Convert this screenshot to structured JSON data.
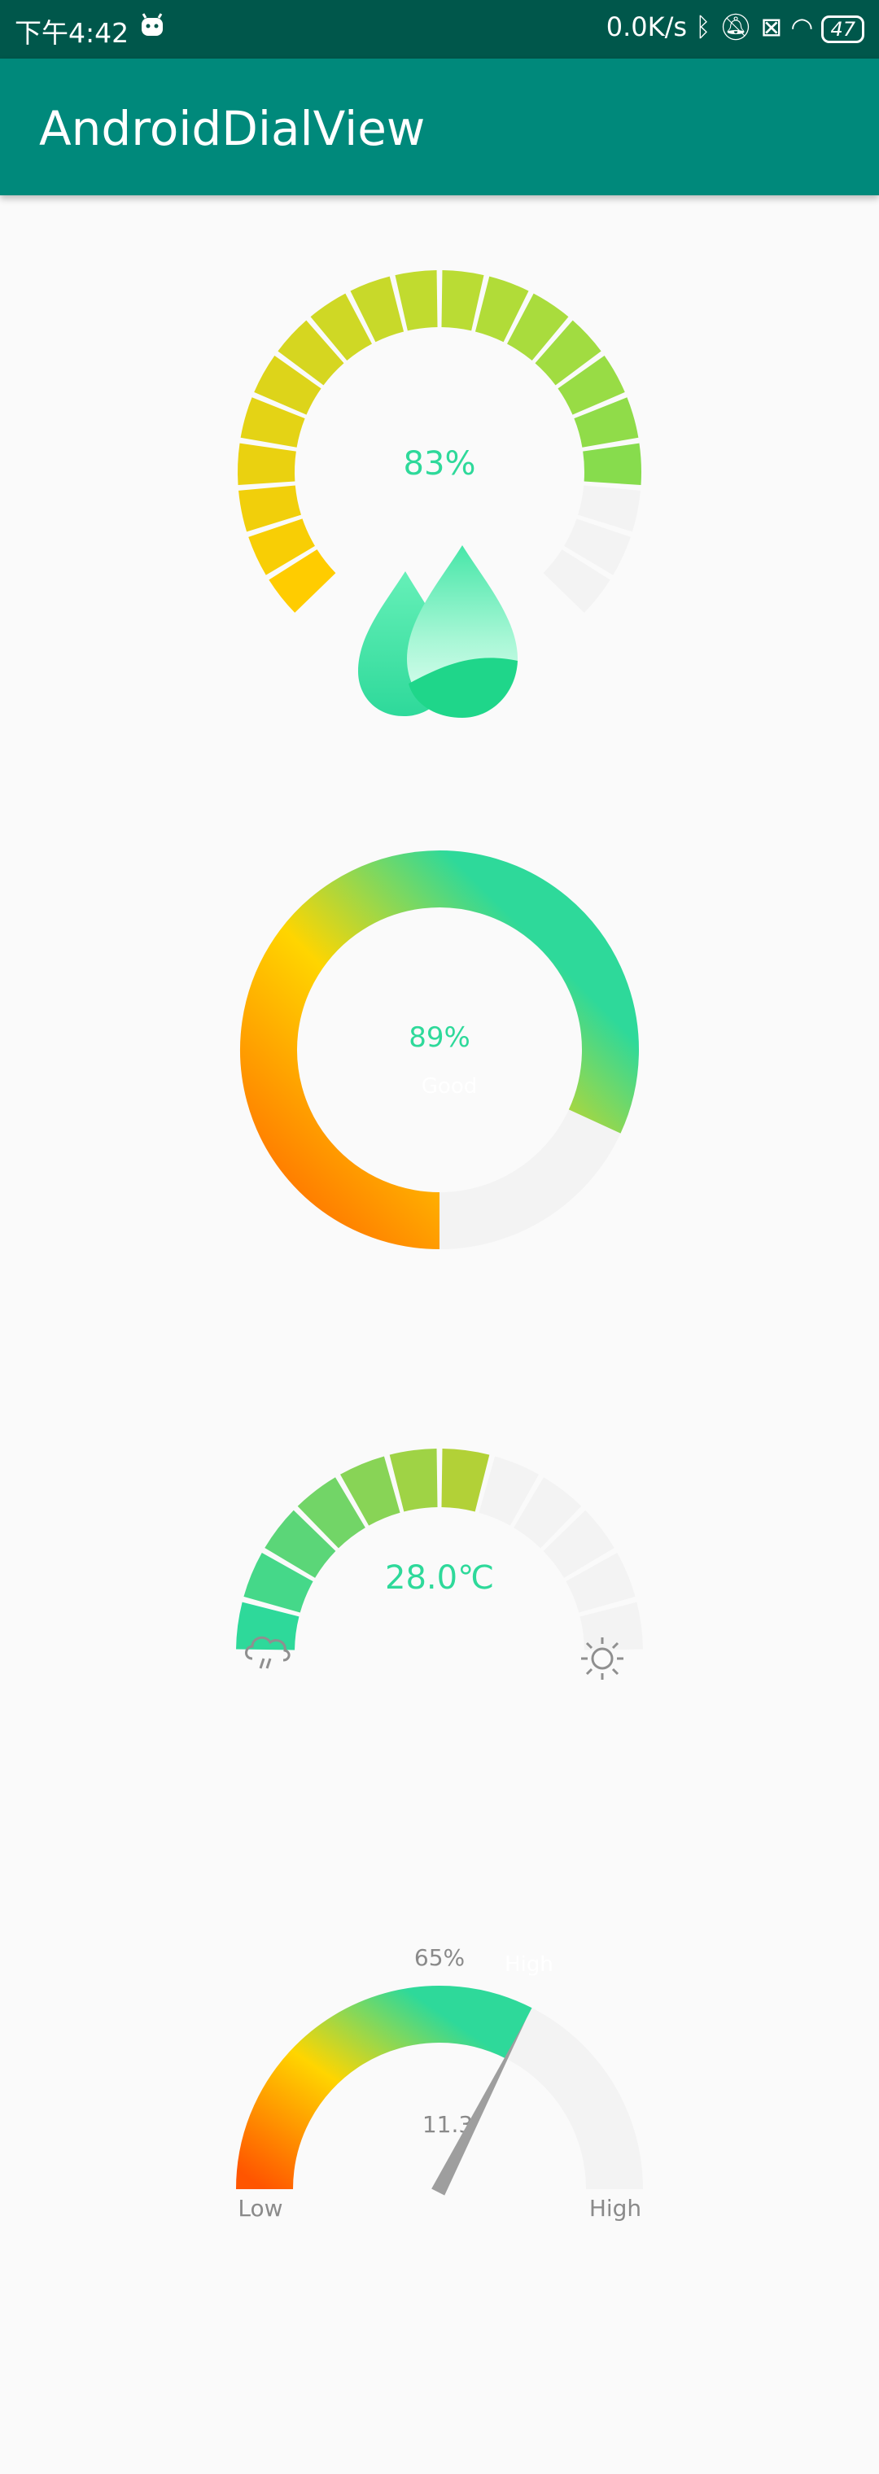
{
  "status_bar": {
    "time": "下午4:42",
    "net_speed": "0.0K/s",
    "battery": "47",
    "icons": [
      "android-bot-icon",
      "bluetooth-icon",
      "bell-off-icon",
      "sim-icon",
      "wifi-icon",
      "battery-icon"
    ]
  },
  "app_bar": {
    "title": "AndroidDialView"
  },
  "dials": {
    "humidity": {
      "value_text": "83%",
      "value": 83,
      "icon": "water-drops-icon"
    },
    "ring": {
      "value_text": "89%",
      "value": 89,
      "label": "Good"
    },
    "temperature": {
      "value_text": "28.0℃",
      "value": 28.0,
      "left_icon": "rain-cloud-icon",
      "right_icon": "sun-icon"
    },
    "gauge": {
      "top_text": "65%",
      "top_right_text": "High",
      "center_text": "11.3",
      "low_label": "Low",
      "high_label": "High",
      "value": 65
    }
  },
  "colors": {
    "status_bar": "#00574b",
    "app_bar": "#00897b",
    "accent": "#2ed99a",
    "orange": "#ff6600",
    "yellow": "#ffd500",
    "track": "#f3f3f3",
    "needle": "#9e9e9e"
  }
}
